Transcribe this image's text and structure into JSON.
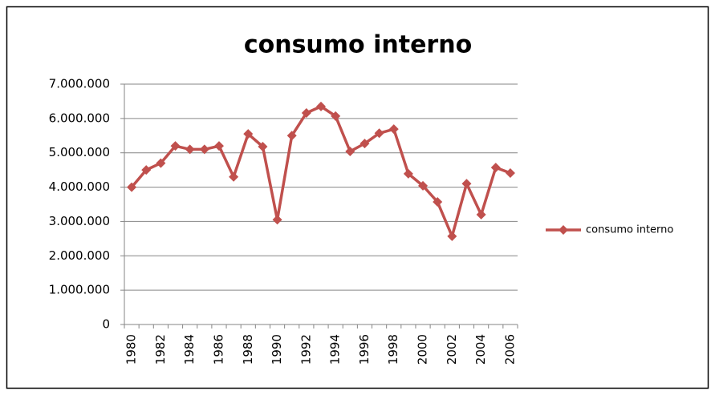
{
  "chart_data": {
    "type": "line",
    "title": "consumo interno",
    "categories": [
      "1980",
      null,
      "1982",
      null,
      "1984",
      null,
      "1986",
      null,
      "1988",
      null,
      "1990",
      null,
      "1992",
      null,
      "1994",
      null,
      "1996",
      null,
      "1998",
      null,
      "2000",
      null,
      "2002",
      null,
      "2004",
      null,
      "2006"
    ],
    "series": [
      {
        "name": "consumo interno",
        "color": "#c0504d",
        "values": [
          4000000,
          4500000,
          4700000,
          5200000,
          5100000,
          5100000,
          5200000,
          4300000,
          5550000,
          5180000,
          3050000,
          5500000,
          6160000,
          6350000,
          6070000,
          5040000,
          5270000,
          5570000,
          5690000,
          4390000,
          4040000,
          3570000,
          2570000,
          4100000,
          3200000,
          4570000,
          4410000
        ]
      }
    ],
    "ylim": [
      0,
      7000000
    ],
    "yticks": [
      0,
      {
        "value": 1000000,
        "label": "1.000.000"
      },
      {
        "value": 2000000,
        "label": "2.000.000"
      },
      {
        "value": 3000000,
        "label": "3.000.000"
      },
      {
        "value": 4000000,
        "label": "4.000.000"
      },
      {
        "value": 5000000,
        "label": "5.000.000"
      },
      {
        "value": 6000000,
        "label": "6.000.000"
      },
      {
        "value": 7000000,
        "label": "7.000.000"
      }
    ],
    "grid": true,
    "legend": "right"
  }
}
